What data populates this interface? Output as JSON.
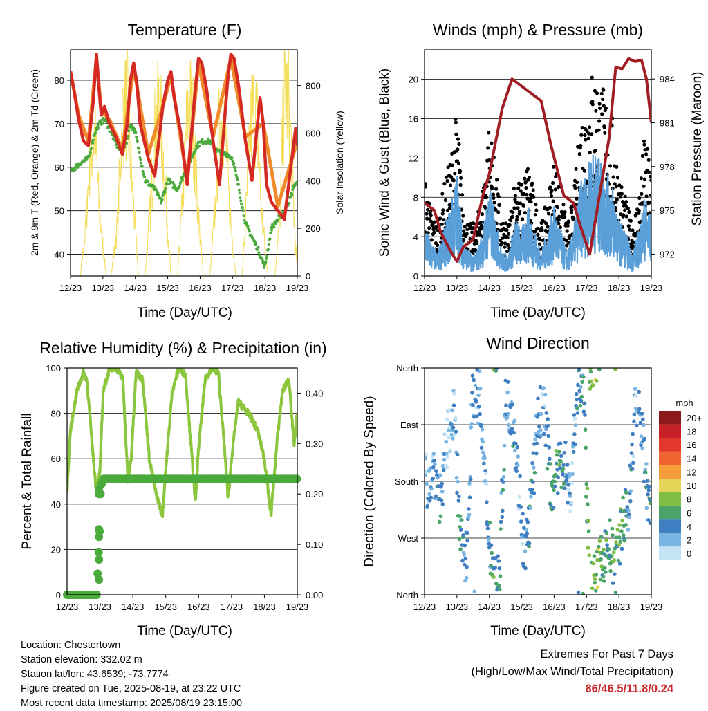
{
  "footer": {
    "location": "Location: Chestertown",
    "elevation": "Station elevation: 332.02 m",
    "latlon": "Station lat/lon: 43.6539; -73.7774",
    "created": "Figure created on Tue, 2025-08-19, at 23:22 UTC",
    "recent": "Most recent data timestamp: 2025/08/19 23:15:00"
  },
  "extremes": {
    "line1": "Extremes For Past 7 Days",
    "line2": "(High/Low/Max Wind/Total Precipitation)",
    "values": "86/46.5/11.8/0.24"
  },
  "colors": {
    "t2m": "#d42a23",
    "t9m": "#f08a2a",
    "td": "#4aaa3c",
    "solar": "#f4dd58",
    "gust": "#000000",
    "wind": "#5b9fd8",
    "pressure": "#a01d24",
    "rh": "#8cc63f",
    "precip": "#4aaa3c"
  },
  "chart_data": [
    {
      "type": "line",
      "title": "Temperature (F)",
      "xlabel": "Time (Day/UTC)",
      "ylabel": "2m & 9m T (Red, Orange) & 2m Td (Green)",
      "ylabel_right": "Solar Insolation (Yellow)",
      "x_ticks": [
        "12/23",
        "13/23",
        "14/23",
        "15/23",
        "16/23",
        "17/23",
        "18/23",
        "19/23"
      ],
      "xlim": [
        0,
        7
      ],
      "ylim": [
        35,
        87
      ],
      "y_ticks": [
        40,
        50,
        60,
        70,
        80
      ],
      "y2lim": [
        0,
        950
      ],
      "y2_ticks": [
        0,
        200,
        400,
        600,
        800
      ],
      "grid": true,
      "series": [
        {
          "name": "2m T",
          "x": [
            0,
            0.1,
            0.25,
            0.4,
            0.55,
            0.7,
            0.8,
            0.88,
            0.95,
            1.05,
            1.2,
            1.4,
            1.6,
            1.75,
            1.85,
            1.95,
            2.05,
            2.15,
            2.4,
            2.6,
            2.85,
            3,
            3.1,
            3.2,
            3.4,
            3.6,
            3.85,
            3.95,
            4.05,
            4.2,
            4.4,
            4.6,
            4.85,
            4.95,
            5.05,
            5.2,
            5.4,
            5.6,
            5.85,
            5.95,
            6.05,
            6.2,
            6.4,
            6.6,
            6.8,
            6.95,
            7
          ],
          "values": [
            82,
            78,
            71,
            66,
            65,
            75,
            86,
            78,
            72,
            74,
            70,
            67,
            63,
            70,
            80,
            84,
            79,
            70,
            62,
            58,
            74,
            80,
            82,
            76,
            68,
            56,
            78,
            85,
            84,
            78,
            66,
            56,
            80,
            86,
            85,
            78,
            66,
            57,
            76,
            70,
            56,
            52,
            50,
            48,
            60,
            69,
            65
          ]
        },
        {
          "name": "9m T",
          "x": [
            0,
            0.25,
            0.55,
            0.8,
            0.95,
            1.2,
            1.6,
            1.95,
            2.4,
            2.85,
            3.1,
            3.6,
            3.95,
            4.4,
            4.95,
            5.4,
            5.95,
            6.4,
            6.8,
            7
          ],
          "values": [
            82,
            72,
            66,
            85,
            73,
            71,
            64,
            83,
            63,
            74,
            81,
            57,
            84,
            67,
            85,
            67,
            70,
            51,
            61,
            66
          ]
        },
        {
          "name": "2m Td",
          "x": [
            0,
            0.3,
            0.55,
            0.75,
            0.9,
            1.05,
            1.25,
            1.5,
            1.7,
            1.85,
            2,
            2.3,
            2.6,
            2.8,
            3,
            3.3,
            3.6,
            3.9,
            4.1,
            4.3,
            4.5,
            4.7,
            4.85,
            5,
            5.2,
            5.4,
            5.6,
            5.8,
            6,
            6.2,
            6.4,
            6.6,
            6.8,
            6.9,
            7
          ],
          "values": [
            59,
            61,
            62,
            68,
            70,
            71,
            68,
            64,
            65,
            70,
            68,
            57,
            55,
            52,
            57,
            55,
            60,
            65,
            66,
            66,
            64,
            63,
            63,
            62,
            55,
            47,
            44,
            41,
            37,
            46,
            48,
            50,
            53,
            56,
            56
          ]
        },
        {
          "name": "Solar Insolation",
          "axis": "right",
          "x": [
            0,
            0.3,
            0.45,
            0.6,
            0.75,
            0.9,
            1.1,
            1.25,
            1.45,
            1.6,
            1.75,
            1.9,
            2.1,
            2.3,
            2.45,
            2.6,
            2.75,
            2.9,
            3.1,
            3.3,
            3.45,
            3.6,
            3.75,
            3.9,
            4.1,
            4.3,
            4.45,
            4.6,
            4.75,
            4.9,
            5.1,
            5.3,
            5.45,
            5.6,
            5.75,
            5.9,
            6.1,
            6.3,
            6.45,
            6.6,
            6.75,
            6.9,
            7
          ],
          "values": [
            0,
            0,
            200,
            600,
            700,
            300,
            0,
            0,
            250,
            800,
            850,
            450,
            0,
            0,
            300,
            700,
            850,
            500,
            0,
            0,
            350,
            800,
            850,
            400,
            0,
            0,
            300,
            750,
            800,
            350,
            0,
            0,
            400,
            820,
            780,
            300,
            0,
            0,
            250,
            900,
            850,
            300,
            0
          ]
        }
      ]
    },
    {
      "type": "scatter",
      "title": "Winds (mph) & Pressure (mb)",
      "xlabel": "Time (Day/UTC)",
      "ylabel": "Sonic Wind & Gust (Blue, Black)",
      "ylabel_right": "Station Pressure (Maroon)",
      "x_ticks": [
        "12/23",
        "13/23",
        "14/23",
        "15/23",
        "16/23",
        "17/23",
        "18/23",
        "19/23"
      ],
      "xlim": [
        0,
        7
      ],
      "ylim": [
        0,
        23
      ],
      "y_ticks": [
        0,
        4,
        8,
        12,
        16,
        20
      ],
      "y2lim": [
        970.5,
        986
      ],
      "y2_ticks": [
        972,
        975,
        978,
        981,
        984
      ],
      "grid": true,
      "series": [
        {
          "name": "Gust",
          "x": [
            0,
            0.2,
            0.4,
            0.6,
            0.8,
            1.0,
            1.2,
            1.4,
            1.6,
            1.8,
            2.0,
            2.2,
            2.4,
            2.6,
            2.8,
            3.0,
            3.2,
            3.4,
            3.6,
            3.8,
            4.0,
            4.2,
            4.4,
            4.6,
            4.8,
            5.0,
            5.2,
            5.4,
            5.6,
            5.8,
            6.0,
            6.2,
            6.4,
            6.6,
            6.8,
            7.0
          ],
          "values": [
            8,
            5,
            4,
            7,
            9,
            13,
            5,
            4,
            4,
            7,
            12,
            8,
            4,
            4,
            8,
            7,
            9,
            6,
            4,
            6,
            9,
            7,
            4,
            6,
            12,
            14,
            16,
            15,
            14,
            12,
            8,
            6,
            4,
            6,
            11,
            8
          ]
        },
        {
          "name": "Wind",
          "x": [
            0,
            0.2,
            0.4,
            0.6,
            0.8,
            1.0,
            1.2,
            1.4,
            1.6,
            1.8,
            2.0,
            2.2,
            2.4,
            2.6,
            2.8,
            3.0,
            3.2,
            3.4,
            3.6,
            3.8,
            4.0,
            4.2,
            4.4,
            4.6,
            4.8,
            5.0,
            5.2,
            5.4,
            5.6,
            5.8,
            6.0,
            6.2,
            6.4,
            6.6,
            6.8,
            7.0
          ],
          "values": [
            5,
            3,
            2,
            4,
            6,
            9,
            3,
            2,
            2,
            4,
            8,
            5,
            2,
            2,
            5,
            4,
            6,
            4,
            2,
            4,
            6,
            4,
            2,
            4,
            8,
            9,
            11,
            10,
            9,
            8,
            5,
            4,
            2,
            4,
            7,
            5
          ]
        },
        {
          "name": "Station Pressure",
          "axis": "right",
          "x": [
            0,
            0.3,
            0.5,
            0.8,
            1.0,
            1.2,
            1.5,
            1.8,
            2.0,
            2.4,
            2.7,
            3.0,
            3.3,
            3.6,
            3.9,
            4.3,
            4.6,
            4.8,
            5.1,
            5.4,
            5.7,
            5.9,
            6.1,
            6.3,
            6.5,
            6.7,
            6.85,
            7.0
          ],
          "values": [
            975.5,
            975,
            973.5,
            972.2,
            971.5,
            972.5,
            973,
            976,
            977.5,
            982,
            984,
            983.5,
            983,
            982.5,
            979.5,
            976,
            975.5,
            974,
            972,
            976,
            980,
            984.8,
            984.7,
            985.4,
            985.2,
            985.3,
            984,
            981
          ]
        }
      ]
    },
    {
      "type": "line",
      "title": "Relative Humidity (%) & Precipitation (in)",
      "xlabel": "Time (Day/UTC)",
      "ylabel": "Percent & Total Rainfall",
      "x_ticks": [
        "12/23",
        "13/23",
        "14/23",
        "15/23",
        "16/23",
        "17/23",
        "18/23",
        "19/23"
      ],
      "xlim": [
        0,
        7
      ],
      "ylim": [
        0,
        100
      ],
      "y_ticks": [
        0,
        20,
        40,
        60,
        80,
        100
      ],
      "y2lim": [
        0,
        0.45
      ],
      "y2_ticks": [
        "0.00",
        "0.10",
        "0.20",
        "0.30",
        "0.40"
      ],
      "grid": true,
      "series": [
        {
          "name": "Relative Humidity",
          "x": [
            0,
            0.1,
            0.3,
            0.5,
            0.6,
            0.8,
            0.9,
            1.0,
            1.1,
            1.3,
            1.5,
            1.7,
            1.85,
            1.95,
            2.1,
            2.3,
            2.5,
            2.7,
            2.9,
            3.0,
            3.2,
            3.4,
            3.6,
            3.8,
            3.9,
            4.0,
            4.2,
            4.4,
            4.6,
            4.8,
            4.9,
            5.0,
            5.2,
            5.4,
            5.6,
            5.8,
            6.0,
            6.2,
            6.4,
            6.55,
            6.75,
            6.9,
            7.0
          ],
          "values": [
            46,
            72,
            90,
            98,
            95,
            60,
            44,
            55,
            90,
            100,
            100,
            95,
            50,
            60,
            98,
            95,
            60,
            45,
            35,
            55,
            90,
            100,
            97,
            60,
            40,
            65,
            95,
            100,
            98,
            62,
            42,
            60,
            85,
            82,
            78,
            72,
            60,
            35,
            70,
            90,
            95,
            65,
            80
          ]
        },
        {
          "name": "Precipitation",
          "axis": "right",
          "x": [
            0,
            0.9,
            0.95,
            1.0,
            1.02,
            1.05,
            1.1,
            1.2,
            2,
            3,
            4,
            5,
            6,
            7
          ],
          "values": [
            0,
            0,
            0.07,
            0.14,
            0.2,
            0.22,
            0.23,
            0.23,
            0.23,
            0.23,
            0.23,
            0.23,
            0.23,
            0.23
          ]
        }
      ]
    },
    {
      "type": "scatter",
      "title": "Wind Direction",
      "xlabel": "Time (Day/UTC)",
      "ylabel": "Direction (Colored By Speed)",
      "x_ticks": [
        "12/23",
        "13/23",
        "14/23",
        "15/23",
        "16/23",
        "17/23",
        "18/23",
        "19/23"
      ],
      "xlim": [
        0,
        7
      ],
      "ylim": [
        0,
        360
      ],
      "y_ticks": [
        "North",
        "East",
        "South",
        "West",
        "North"
      ],
      "grid": true,
      "legend": {
        "title": "mph",
        "labels": [
          "20+",
          "18",
          "16",
          "14",
          "12",
          "10",
          "8",
          "6",
          "4",
          "2",
          "0"
        ],
        "colors": [
          "#8c1a1c",
          "#c42026",
          "#e2372b",
          "#f0642f",
          "#f59c3b",
          "#e5d65a",
          "#7fbe43",
          "#4aa46a",
          "#3f7fc1",
          "#79b4e3",
          "#c3e4f5"
        ],
        "position": "right"
      },
      "series": [
        {
          "name": "Direction",
          "x": [
            0.1,
            0.3,
            0.5,
            0.7,
            0.9,
            1.1,
            1.3,
            1.5,
            1.7,
            1.9,
            2.1,
            2.3,
            2.5,
            2.7,
            2.9,
            3.1,
            3.3,
            3.5,
            3.7,
            3.9,
            4.1,
            4.3,
            4.5,
            4.7,
            4.9,
            5.1,
            5.3,
            5.5,
            5.7,
            5.9,
            6.1,
            6.3,
            6.5,
            6.7,
            6.9
          ],
          "values": [
            180,
            200,
            150,
            240,
            300,
            90,
            60,
            330,
            310,
            150,
            40,
            20,
            300,
            300,
            180,
            60,
            150,
            280,
            300,
            170,
            190,
            220,
            150,
            320,
            340,
            10,
            20,
            60,
            80,
            40,
            120,
            130,
            300,
            270,
            150
          ],
          "speeds": [
            2,
            3,
            4,
            1,
            2,
            5,
            4,
            2,
            3,
            1,
            6,
            5,
            3,
            4,
            2,
            3,
            4,
            3,
            2,
            5,
            6,
            4,
            2,
            3,
            5,
            7,
            8,
            6,
            5,
            7,
            6,
            4,
            2,
            3,
            5
          ]
        }
      ]
    }
  ]
}
